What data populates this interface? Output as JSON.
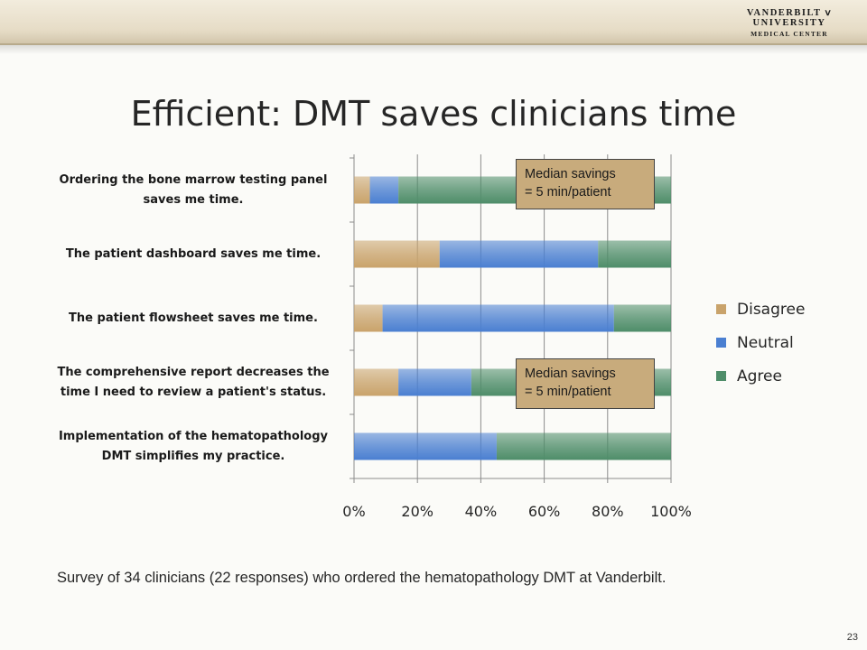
{
  "header": {
    "logo_main": "VANDERBILT ⅴ UNIVERSITY",
    "logo_sub": "MEDICAL CENTER"
  },
  "slide": {
    "title": "Efficient: DMT saves clinicians time",
    "survey_note": "Survey of 34 clinicians (22 responses) who ordered the hematopathology DMT at Vanderbilt.",
    "page_number": "23"
  },
  "callouts": [
    {
      "line1": "Median savings",
      "line2": "= 5 min/patient"
    },
    {
      "line1": "Median savings",
      "line2": "= 5 min/patient"
    }
  ],
  "colors": {
    "disagree": "#c9a36b",
    "neutral": "#4a7fd1",
    "agree": "#4e8d69",
    "callout": "#c8ab7c"
  },
  "chart_data": {
    "type": "bar",
    "orientation": "horizontal",
    "stacked": true,
    "percent": true,
    "categories": [
      [
        "Ordering the bone marrow testing panel",
        "saves me time."
      ],
      [
        "The patient dashboard saves me time."
      ],
      [
        "The patient flowsheet saves me time."
      ],
      [
        "The comprehensive report decreases the",
        "time I need to review a patient's status."
      ],
      [
        "Implementation of the hematopathology",
        "DMT simplifies my practice."
      ]
    ],
    "series": [
      {
        "name": "Disagree",
        "values": [
          5,
          27,
          9,
          14,
          0
        ]
      },
      {
        "name": "Neutral",
        "values": [
          9,
          50,
          73,
          23,
          45
        ]
      },
      {
        "name": "Agree",
        "values": [
          86,
          23,
          18,
          63,
          55
        ]
      }
    ],
    "xticks": [
      "0%",
      "20%",
      "40%",
      "60%",
      "80%",
      "100%"
    ],
    "xlim": [
      0,
      100
    ],
    "grid": true,
    "legend_position": "right"
  }
}
